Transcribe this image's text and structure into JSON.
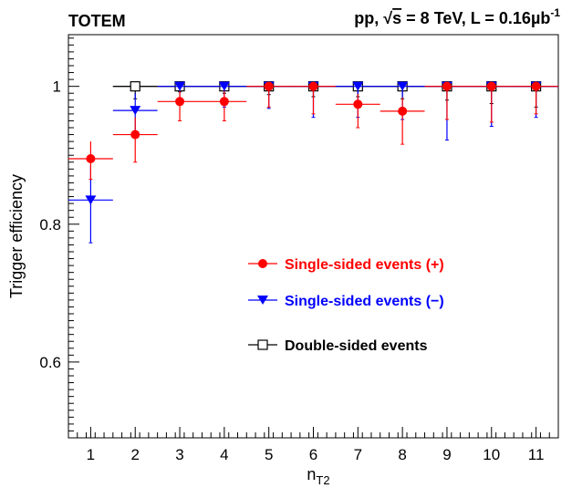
{
  "header": {
    "experiment": "TOTEM",
    "conditions_prefix": "pp, ",
    "sqrt_symbol": "√",
    "conditions_s": "s",
    "conditions_mid": " = 8 TeV, L = 0.16",
    "conditions_unit": "µb",
    "conditions_exp": "-1"
  },
  "chart_data": {
    "type": "scatter",
    "xlabel": "n",
    "xlabel_sub": "T2",
    "ylabel": "Trigger efficiency",
    "xlim": [
      0.5,
      11.5
    ],
    "ylim": [
      0.49,
      1.075
    ],
    "x_ticks": [
      1,
      2,
      3,
      4,
      5,
      6,
      7,
      8,
      9,
      10,
      11
    ],
    "y_ticks": [
      0.6,
      0.8,
      1
    ],
    "y_tick_labels": [
      "0.6",
      "0.8",
      "1"
    ],
    "reference_line": 1,
    "grid": false,
    "legend_position": "center-right",
    "series": [
      {
        "name": "Single-sided events (+)",
        "color": "#ff0000",
        "marker": "circle",
        "x": [
          1,
          2,
          3,
          4,
          5,
          6,
          7,
          8,
          9,
          10,
          11
        ],
        "y": [
          0.895,
          0.93,
          0.978,
          0.978,
          1.0,
          1.0,
          0.974,
          0.964,
          1.0,
          1.0,
          1.0
        ],
        "err_low": [
          0.03,
          0.04,
          0.028,
          0.028,
          0.03,
          0.04,
          0.034,
          0.048,
          0.048,
          0.052,
          0.04
        ],
        "err_high": [
          0.025,
          0.025,
          0.015,
          0.015,
          0.0,
          0.0,
          0.015,
          0.02,
          0.0,
          0.0,
          0.0
        ],
        "x_err": 0.5
      },
      {
        "name": "Single-sided events (−)",
        "color": "#0000ff",
        "marker": "triangle-down",
        "x": [
          1,
          2,
          3,
          4,
          5,
          6,
          7,
          8,
          9,
          10,
          11
        ],
        "y": [
          0.835,
          0.965,
          1.0,
          1.0,
          1.0,
          1.0,
          1.0,
          1.0,
          1.0,
          1.0,
          1.0
        ],
        "err_low": [
          0.062,
          0.04,
          0.025,
          0.03,
          0.032,
          0.045,
          0.045,
          0.048,
          0.078,
          0.058,
          0.045
        ],
        "err_high": [
          0.05,
          0.025,
          0.0,
          0.0,
          0.0,
          0.0,
          0.0,
          0.0,
          0.0,
          0.0,
          0.0
        ],
        "x_err": 0.5
      },
      {
        "name": "Double-sided events",
        "color": "#000000",
        "marker": "open-square",
        "x": [
          2,
          3,
          4,
          5,
          6,
          7,
          8,
          9,
          10,
          11
        ],
        "y": [
          1.0,
          1.0,
          1.0,
          1.0,
          1.0,
          1.0,
          1.0,
          1.0,
          1.0,
          1.0
        ],
        "err_low": [
          0.018,
          0.008,
          0.01,
          0.012,
          0.015,
          0.015,
          0.018,
          0.02,
          0.025,
          0.03
        ],
        "err_high": [
          0.0,
          0.0,
          0.0,
          0.0,
          0.0,
          0.0,
          0.0,
          0.0,
          0.0,
          0.0
        ],
        "x_err": 0.5
      }
    ]
  }
}
